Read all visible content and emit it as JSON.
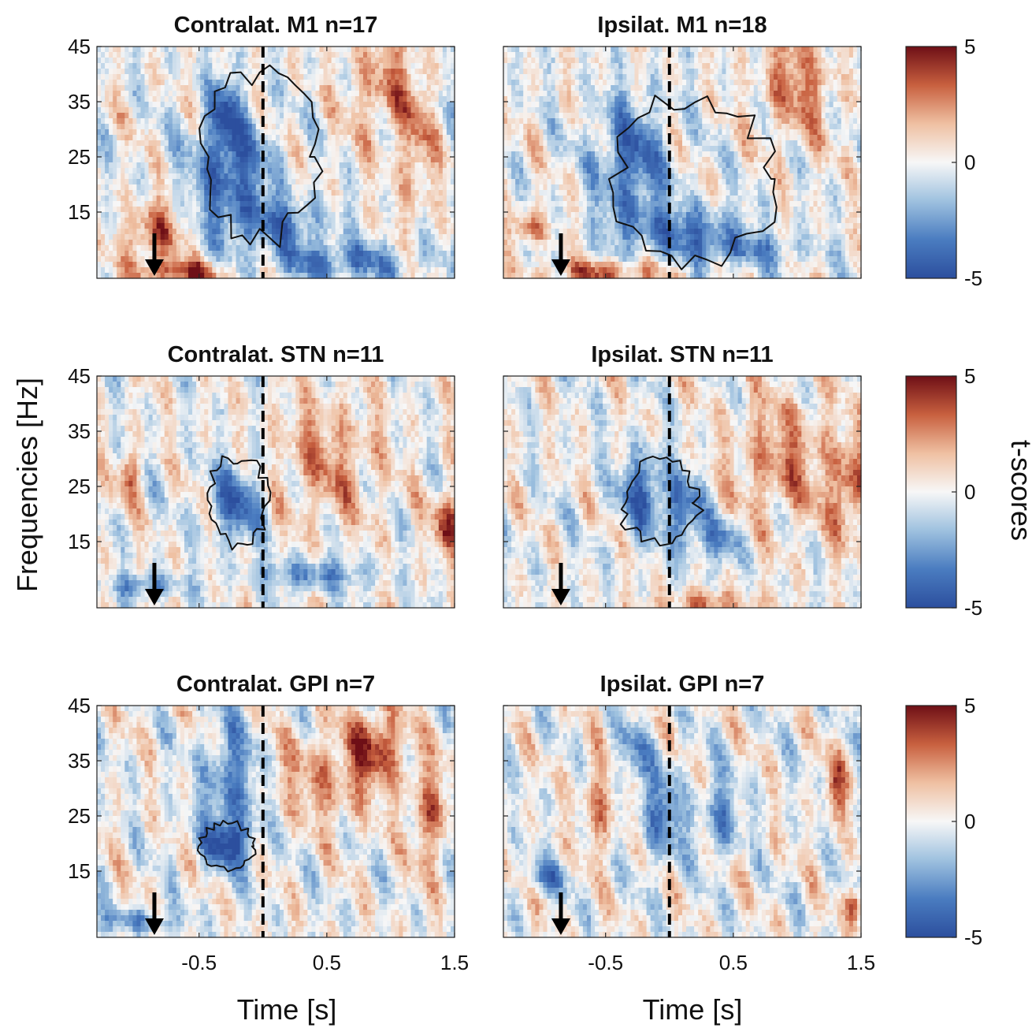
{
  "chart_data": {
    "type": "heatmap",
    "ylabel": "Frequencies [Hz]",
    "xlabel": "Time [s]",
    "colorbar": {
      "label": "t-scores",
      "ticks": [
        "5",
        "0",
        "-5"
      ],
      "range": [
        -5,
        5
      ],
      "colormap": [
        "#2c4f9e",
        "#4a7cc0",
        "#9ec1df",
        "#f7f7f7",
        "#efc0a2",
        "#c8603f",
        "#6e0f16"
      ]
    },
    "x_ticks": [
      "-0.5",
      "0.5",
      "1.5"
    ],
    "y_ticks": [
      "45",
      "35",
      "25",
      "15"
    ],
    "xlim": [
      -1.3,
      1.5
    ],
    "ylim": [
      3,
      45
    ],
    "movement_onset_s": 0,
    "arrow_time_s": -0.85,
    "panels": [
      {
        "title": "Contralat. M1  n=17",
        "significant_cluster": {
          "t_range": [
            -0.5,
            0.45
          ],
          "f_range": [
            9,
            41
          ]
        },
        "features": [
          {
            "t": -0.25,
            "f": 22,
            "st": 0.22,
            "sf": 8,
            "v": -4.2
          },
          {
            "t": -0.3,
            "f": 33,
            "st": 0.08,
            "sf": 5,
            "v": -3.2
          },
          {
            "t": 0.15,
            "f": 13,
            "st": 0.25,
            "sf": 3,
            "v": -3.0
          },
          {
            "t": 0.6,
            "f": 6,
            "st": 0.4,
            "sf": 2.5,
            "v": -3.5
          },
          {
            "t": -0.85,
            "f": 11,
            "st": 0.15,
            "sf": 4,
            "v": 3.5
          },
          {
            "t": -0.6,
            "f": 4,
            "st": 0.25,
            "sf": 1.5,
            "v": 4.0
          },
          {
            "t": 0.95,
            "f": 38,
            "st": 0.2,
            "sf": 7,
            "v": 2.5
          },
          {
            "t": 1.2,
            "f": 25,
            "st": 0.1,
            "sf": 8,
            "v": 2.2
          }
        ]
      },
      {
        "title": "Ipsilat. M1  n=18",
        "significant_cluster": {
          "t_range": [
            -0.45,
            0.85
          ],
          "f_range": [
            5,
            37
          ]
        },
        "features": [
          {
            "t": -0.3,
            "f": 24,
            "st": 0.2,
            "sf": 8,
            "v": -4.0
          },
          {
            "t": 0.1,
            "f": 12,
            "st": 0.35,
            "sf": 3,
            "v": -3.2
          },
          {
            "t": 0.55,
            "f": 8,
            "st": 0.35,
            "sf": 2,
            "v": -2.8
          },
          {
            "t": -1.1,
            "f": 12,
            "st": 0.1,
            "sf": 2,
            "v": 3.0
          },
          {
            "t": -0.5,
            "f": 4,
            "st": 0.3,
            "sf": 1.5,
            "v": 3.5
          },
          {
            "t": 1.0,
            "f": 38,
            "st": 0.2,
            "sf": 7,
            "v": 2.8
          }
        ]
      },
      {
        "title": "Contralat. STN  n=11",
        "significant_cluster": {
          "t_range": [
            -0.45,
            0.05
          ],
          "f_range": [
            14,
            31
          ]
        },
        "features": [
          {
            "t": -0.2,
            "f": 22,
            "st": 0.15,
            "sf": 5,
            "v": -4.0
          },
          {
            "t": 0.4,
            "f": 9,
            "st": 0.3,
            "sf": 2,
            "v": -3.0
          },
          {
            "t": -0.9,
            "f": 7,
            "st": 0.2,
            "sf": 1.5,
            "v": -3.0
          },
          {
            "t": 1.45,
            "f": 18,
            "st": 0.08,
            "sf": 4,
            "v": 4.0
          },
          {
            "t": 0.5,
            "f": 30,
            "st": 0.3,
            "sf": 8,
            "v": 2.3
          },
          {
            "t": -1.05,
            "f": 27,
            "st": 0.06,
            "sf": 3,
            "v": 3.0
          }
        ]
      },
      {
        "title": "Ipsilat. STN  n=11",
        "significant_cluster": {
          "t_range": [
            -0.4,
            0.25
          ],
          "f_range": [
            14,
            30
          ]
        },
        "features": [
          {
            "t": -0.2,
            "f": 24,
            "st": 0.14,
            "sf": 5,
            "v": -4.0
          },
          {
            "t": 0.12,
            "f": 20,
            "st": 0.1,
            "sf": 5,
            "v": -3.8
          },
          {
            "t": 0.4,
            "f": 15,
            "st": 0.12,
            "sf": 3,
            "v": -2.8
          },
          {
            "t": 0.9,
            "f": 30,
            "st": 0.3,
            "sf": 8,
            "v": 2.5
          },
          {
            "t": 0.3,
            "f": 4,
            "st": 0.3,
            "sf": 1.5,
            "v": 2.5
          },
          {
            "t": 1.4,
            "f": 24,
            "st": 0.1,
            "sf": 6,
            "v": 3.2
          }
        ]
      },
      {
        "title": "Contralat. GPI  n=7",
        "significant_cluster": {
          "t_range": [
            -0.5,
            -0.05
          ],
          "f_range": [
            15,
            24
          ]
        },
        "features": [
          {
            "t": -0.25,
            "f": 31,
            "st": 0.15,
            "sf": 8,
            "v": -3.5
          },
          {
            "t": -0.28,
            "f": 20,
            "st": 0.15,
            "sf": 3,
            "v": -4.0
          },
          {
            "t": 0.9,
            "f": 38,
            "st": 0.15,
            "sf": 5,
            "v": 3.5
          },
          {
            "t": 1.3,
            "f": 25,
            "st": 0.1,
            "sf": 7,
            "v": 3.0
          },
          {
            "t": 0.5,
            "f": 32,
            "st": 0.3,
            "sf": 6,
            "v": 2.3
          },
          {
            "t": -1.0,
            "f": 6,
            "st": 0.25,
            "sf": 1.5,
            "v": -2.5
          }
        ]
      },
      {
        "title": "Ipsilat. GPI  n=7",
        "significant_cluster": null,
        "features": [
          {
            "t": -0.05,
            "f": 25,
            "st": 0.12,
            "sf": 6,
            "v": -3.3
          },
          {
            "t": 0.4,
            "f": 25,
            "st": 0.1,
            "sf": 5,
            "v": -3.0
          },
          {
            "t": -0.3,
            "f": 36,
            "st": 0.1,
            "sf": 4,
            "v": -2.5
          },
          {
            "t": -0.95,
            "f": 14,
            "st": 0.12,
            "sf": 2,
            "v": -3.0
          },
          {
            "t": 1.3,
            "f": 30,
            "st": 0.06,
            "sf": 4,
            "v": 3.5
          },
          {
            "t": 1.45,
            "f": 9,
            "st": 0.05,
            "sf": 2,
            "v": 3.5
          },
          {
            "t": -0.55,
            "f": 27,
            "st": 0.1,
            "sf": 6,
            "v": 2.5
          }
        ]
      }
    ]
  }
}
